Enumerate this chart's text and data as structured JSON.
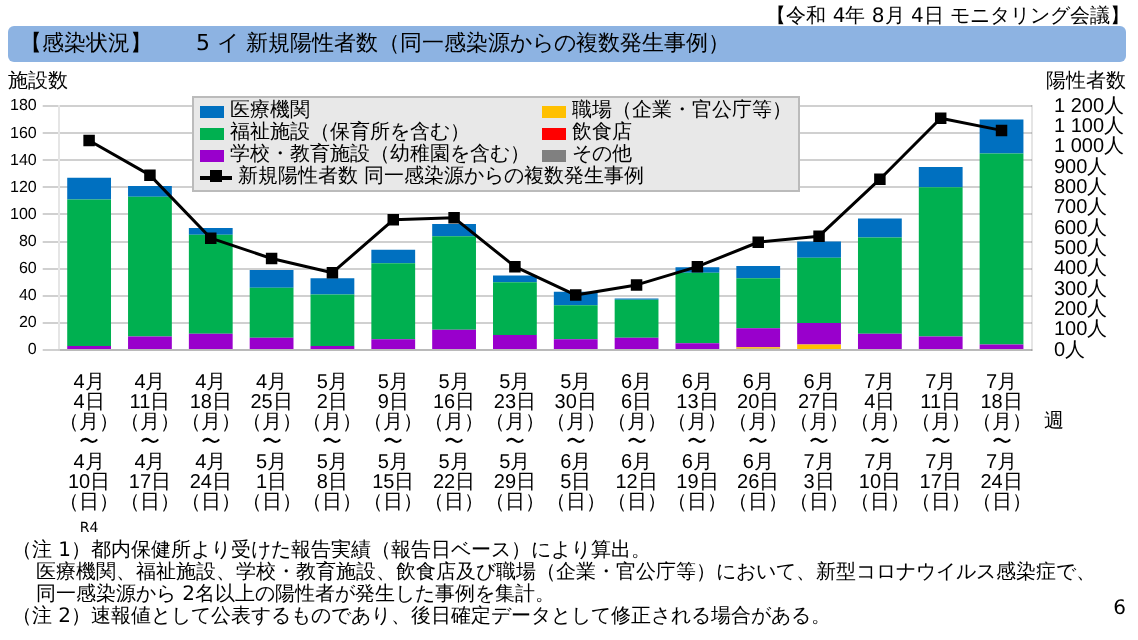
{
  "chart_data": {
    "type": "bar",
    "title": "【感染状況】　　5 イ 新規陽性者数（同一感染源からの複数発生事例）",
    "ylabel": "施設数",
    "y2label": "陽性者数",
    "xlabel": "週",
    "categories": [
      "4月4日（月）〜4月10日（日）",
      "4月11日（月）〜4月17日（日）",
      "4月18日（月）〜4月24日（日）",
      "4月25日（月）〜5月1日（日）",
      "5月2日（月）〜5月8日（日）",
      "5月9日（月）〜5月15日（日）",
      "5月16日（月）〜5月22日（日）",
      "5月23日（月）〜5月29日（日）",
      "5月30日（月）〜6月5日（日）",
      "6月6日（月）〜6月12日（日）",
      "6月13日（月）〜6月19日（日）",
      "6月20日（月）〜6月26日（日）",
      "6月27日（月）〜7月3日（日）",
      "7月4日（月）〜7月10日（日）",
      "7月11日（月）〜7月17日（日）",
      "7月18日（月）〜7月24日（日）"
    ],
    "series": [
      {
        "name": "その他",
        "color": "#808080",
        "values": [
          0,
          0,
          0,
          0,
          0,
          0,
          0,
          0,
          0,
          0,
          0,
          1,
          0,
          0,
          0,
          0
        ]
      },
      {
        "name": "飲食店",
        "color": "#ff0000",
        "values": [
          0,
          0,
          0,
          0,
          0,
          0,
          0,
          0,
          0,
          0,
          0,
          0,
          0,
          0,
          0,
          0
        ]
      },
      {
        "name": "職場（企業・官公庁等）",
        "color": "#ffc000",
        "values": [
          0,
          null,
          0,
          null,
          0,
          0,
          0,
          0,
          0,
          0,
          0,
          1,
          4,
          null,
          null,
          0
        ]
      },
      {
        "name": "学校・教育施設（幼稚園を含む）",
        "color": "#9900cc",
        "values": [
          3,
          10,
          12,
          9,
          3,
          8,
          15,
          11,
          8,
          9,
          5,
          14,
          16,
          12,
          10,
          4
        ]
      },
      {
        "name": "福祉施設（保育所を含む）",
        "color": "#00b050",
        "values": [
          108,
          103,
          73,
          37,
          38,
          56,
          69,
          39,
          25,
          28,
          52,
          37,
          48,
          71,
          110,
          141
        ]
      },
      {
        "name": "医療機関",
        "color": "#0070c0",
        "values": [
          16,
          8,
          5,
          13,
          12,
          10,
          9,
          5,
          10,
          1,
          4,
          9,
          12,
          14,
          15,
          25
        ]
      },
      {
        "name": "新規陽性者数 同一感染源からの複数発生事例",
        "type": "line",
        "axis": "y2",
        "color": "#000000",
        "marker": "square",
        "values": [
          1030,
          860,
          550,
          450,
          380,
          640,
          650,
          410,
          270,
          320,
          410,
          530,
          560,
          840,
          1140,
          1080
        ]
      }
    ],
    "stacked": true,
    "ylim": [
      0,
      180
    ],
    "yticks": [
      0,
      20,
      40,
      60,
      80,
      100,
      120,
      140,
      160,
      180
    ],
    "y2lim": [
      0,
      1200
    ],
    "y2ticks": [
      {
        "value": 0,
        "label": "0人"
      },
      {
        "value": 100,
        "label": "100人"
      },
      {
        "value": 200,
        "label": "200人"
      },
      {
        "value": 300,
        "label": "300人"
      },
      {
        "value": 400,
        "label": "400人"
      },
      {
        "value": 500,
        "label": "500人"
      },
      {
        "value": 600,
        "label": "600人"
      },
      {
        "value": 700,
        "label": "700人"
      },
      {
        "value": 800,
        "label": "800人"
      },
      {
        "value": 900,
        "label": "900人"
      },
      {
        "value": 1000,
        "label": "1 000人"
      },
      {
        "value": 1100,
        "label": "1 100人"
      },
      {
        "value": 1200,
        "label": "1 200人"
      }
    ],
    "grid": "y",
    "legend": "top",
    "annotations": [
      "【令和 4年 8月 4日 モニタリング会議】",
      "R4",
      "（注 1）都内保健所より受けた報告実績（報告日ベース）により算出。",
      "医療機関、福祉施設、学校・教育施設、飲食店及び職場（企業・官公庁等）において、新型コロナウイルス感染症で、",
      "同一感染源から 2名以上の陽性者が発生した事例を集計。",
      "（注 2）速報値として公表するものであり、後日確定データとして修正される場合がある。",
      "6"
    ]
  }
}
